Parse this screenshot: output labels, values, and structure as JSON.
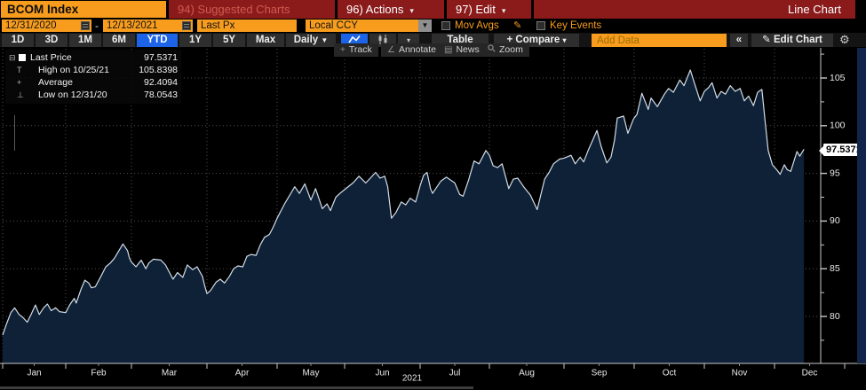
{
  "colors": {
    "amber": "#f79c1d",
    "red_bar": "#8b1b1b",
    "active_blue": "#1c63e7",
    "line": "#d2dde8",
    "fill": "#0e2137",
    "grid": "#4f4f4f",
    "axis": "#c9c9c9",
    "label": "#e8e8e8"
  },
  "icons": {
    "caret_down": "▾",
    "caret_down_solid": "▼",
    "pencil": "✎",
    "gear": "⚙",
    "news": "▤",
    "annotate": "∠",
    "track": "+",
    "collapse_box": "⊟",
    "high_marker": "T",
    "avg_marker": "+",
    "low_marker": "⊥"
  },
  "titlebar": {
    "ticker": "BCOM Index",
    "suggested": "94) Suggested Charts",
    "actions": "96) Actions",
    "edit": "97) Edit",
    "chart_type": "Line Chart"
  },
  "toolbar2": {
    "date_from": "12/31/2020",
    "date_sep": "-",
    "date_to": "12/13/2021",
    "field": "Last Px",
    "currency": "Local CCY",
    "mov_avgs": "Mov Avgs",
    "key_events": "Key Events"
  },
  "toolbar3": {
    "ranges": [
      "1D",
      "3D",
      "1M",
      "6M",
      "YTD",
      "1Y",
      "5Y",
      "Max"
    ],
    "active_range": "YTD",
    "period": "Daily",
    "table": "Table",
    "compare": "+ Compare",
    "add_data_placeholder": "Add Data",
    "collapse": "«",
    "edit_chart": "Edit Chart"
  },
  "chart_toolbar": {
    "items": [
      "Track",
      "Annotate",
      "News",
      "Zoom"
    ]
  },
  "legend": {
    "rows": [
      {
        "icon": "swatch",
        "label": "Last Price",
        "value": "97.5371"
      },
      {
        "icon": "T",
        "label": "High on 10/25/21",
        "value": "105.8398"
      },
      {
        "icon": "+",
        "label": "Average",
        "value": "92.4094"
      },
      {
        "icon": "⊥",
        "label": "Low on 12/31/20",
        "value": "78.0543"
      }
    ]
  },
  "last_price_callout": "97.5371",
  "chart_data": {
    "type": "area",
    "title": "BCOM Index",
    "xlabel": "",
    "ylabel": "",
    "x_axis": {
      "tick_labels": [
        "Jan",
        "Feb",
        "Mar",
        "Apr",
        "May",
        "Jun",
        "Jul",
        "Aug",
        "Sep",
        "Oct",
        "Nov",
        "Dec"
      ],
      "year_label": "2021",
      "unit": "decimal month, 0 = 12/31/2020, 11.42 = 12/13/2021"
    },
    "y_axis": {
      "ticks": [
        80,
        85,
        90,
        95,
        100,
        105
      ],
      "minor_ticks": [
        77.5,
        82.5,
        87.5,
        92.5,
        97.5,
        102.5,
        107.5
      ],
      "ylim": [
        75.1,
        108.2
      ]
    },
    "grid": "dotted",
    "legend_position": "top-left",
    "stats": {
      "last": 97.5371,
      "high_date": "10/25/21",
      "high": 105.8398,
      "average": 92.4094,
      "low_date": "12/31/20",
      "low": 78.0543
    },
    "series": [
      {
        "name": "Last Price",
        "points": [
          [
            0,
            78.05
          ],
          [
            0.06,
            79.2
          ],
          [
            0.13,
            80.4
          ],
          [
            0.19,
            80.9
          ],
          [
            0.26,
            80.2
          ],
          [
            0.32,
            79.9
          ],
          [
            0.39,
            79.4
          ],
          [
            0.45,
            80.2
          ],
          [
            0.52,
            81.2
          ],
          [
            0.58,
            80.2
          ],
          [
            0.65,
            80.9
          ],
          [
            0.71,
            81.3
          ],
          [
            0.77,
            80.6
          ],
          [
            0.84,
            80.9
          ],
          [
            0.9,
            80.5
          ],
          [
            1,
            80.4
          ],
          [
            1.06,
            81.2
          ],
          [
            1.13,
            81.9
          ],
          [
            1.16,
            81.4
          ],
          [
            1.23,
            82.8
          ],
          [
            1.29,
            83.8
          ],
          [
            1.35,
            83.5
          ],
          [
            1.39,
            83.0
          ],
          [
            1.45,
            83.1
          ],
          [
            1.55,
            84.4
          ],
          [
            1.61,
            85.2
          ],
          [
            1.68,
            85.6
          ],
          [
            1.74,
            86.1
          ],
          [
            1.81,
            86.9
          ],
          [
            1.87,
            87.6
          ],
          [
            1.94,
            86.9
          ],
          [
            1.97,
            86.1
          ],
          [
            2,
            85.7
          ],
          [
            2.06,
            85.2
          ],
          [
            2.13,
            85.9
          ],
          [
            2.19,
            85.0
          ],
          [
            2.23,
            85.6
          ],
          [
            2.29,
            86.0
          ],
          [
            2.39,
            85.9
          ],
          [
            2.45,
            85.4
          ],
          [
            2.55,
            83.9
          ],
          [
            2.61,
            84.6
          ],
          [
            2.68,
            84.1
          ],
          [
            2.74,
            85.4
          ],
          [
            2.81,
            84.9
          ],
          [
            2.87,
            85.2
          ],
          [
            2.94,
            84.2
          ],
          [
            2.97,
            83.2
          ],
          [
            3,
            82.4
          ],
          [
            3.05,
            82.7
          ],
          [
            3.13,
            83.6
          ],
          [
            3.19,
            83.9
          ],
          [
            3.25,
            83.5
          ],
          [
            3.32,
            84.2
          ],
          [
            3.38,
            85.0
          ],
          [
            3.44,
            85.3
          ],
          [
            3.51,
            85.2
          ],
          [
            3.57,
            86.3
          ],
          [
            3.63,
            86.5
          ],
          [
            3.7,
            86.4
          ],
          [
            3.76,
            87.5
          ],
          [
            3.82,
            88.3
          ],
          [
            3.89,
            88.6
          ],
          [
            3.94,
            89.3
          ],
          [
            4,
            90.3
          ],
          [
            4.11,
            91.8
          ],
          [
            4.26,
            93.6
          ],
          [
            4.33,
            92.9
          ],
          [
            4.41,
            93.9
          ],
          [
            4.5,
            92.2
          ],
          [
            4.57,
            93.4
          ],
          [
            4.67,
            91.3
          ],
          [
            4.74,
            91.8
          ],
          [
            4.79,
            91.1
          ],
          [
            4.87,
            92.5
          ],
          [
            4.93,
            92.9
          ],
          [
            5,
            93.3
          ],
          [
            5.11,
            94.0
          ],
          [
            5.19,
            94.7
          ],
          [
            5.28,
            94.0
          ],
          [
            5.34,
            94.5
          ],
          [
            5.41,
            95.1
          ],
          [
            5.47,
            94.5
          ],
          [
            5.53,
            94.7
          ],
          [
            5.57,
            93.6
          ],
          [
            5.62,
            90.3
          ],
          [
            5.68,
            90.9
          ],
          [
            5.75,
            92.0
          ],
          [
            5.81,
            91.7
          ],
          [
            5.87,
            92.4
          ],
          [
            5.94,
            92.0
          ],
          [
            6,
            93.7
          ],
          [
            6.05,
            94.8
          ],
          [
            6.1,
            95.1
          ],
          [
            6.15,
            93.4
          ],
          [
            6.18,
            92.9
          ],
          [
            6.3,
            94.2
          ],
          [
            6.38,
            94.6
          ],
          [
            6.5,
            94.0
          ],
          [
            6.57,
            92.8
          ],
          [
            6.62,
            92.6
          ],
          [
            6.7,
            94.3
          ],
          [
            6.78,
            96.3
          ],
          [
            6.85,
            96.0
          ],
          [
            6.95,
            97.4
          ],
          [
            7,
            96.9
          ],
          [
            7.05,
            95.8
          ],
          [
            7.11,
            95.6
          ],
          [
            7.17,
            96.0
          ],
          [
            7.26,
            93.4
          ],
          [
            7.32,
            94.4
          ],
          [
            7.38,
            94.5
          ],
          [
            7.46,
            93.6
          ],
          [
            7.55,
            92.7
          ],
          [
            7.64,
            91.2
          ],
          [
            7.74,
            94.4
          ],
          [
            7.8,
            95.1
          ],
          [
            7.86,
            96.0
          ],
          [
            7.94,
            96.5
          ],
          [
            8,
            96.6
          ],
          [
            8.1,
            96.9
          ],
          [
            8.16,
            96.0
          ],
          [
            8.23,
            96.7
          ],
          [
            8.28,
            96.2
          ],
          [
            8.35,
            97.5
          ],
          [
            8.47,
            99.5
          ],
          [
            8.53,
            97.8
          ],
          [
            8.61,
            96.1
          ],
          [
            8.67,
            96.7
          ],
          [
            8.72,
            98.5
          ],
          [
            8.76,
            100.8
          ],
          [
            8.85,
            101.0
          ],
          [
            8.91,
            99.2
          ],
          [
            8.99,
            100.7
          ],
          [
            9.04,
            101.2
          ],
          [
            9.11,
            103.4
          ],
          [
            9.2,
            101.7
          ],
          [
            9.24,
            102.9
          ],
          [
            9.33,
            102.0
          ],
          [
            9.43,
            103.3
          ],
          [
            9.49,
            103.9
          ],
          [
            9.56,
            103.5
          ],
          [
            9.65,
            104.8
          ],
          [
            9.71,
            104.2
          ],
          [
            9.8,
            105.84
          ],
          [
            9.87,
            104.2
          ],
          [
            9.94,
            102.6
          ],
          [
            10,
            103.6
          ],
          [
            10.06,
            104.0
          ],
          [
            10.11,
            104.5
          ],
          [
            10.18,
            102.9
          ],
          [
            10.24,
            103.6
          ],
          [
            10.3,
            103.3
          ],
          [
            10.37,
            104.2
          ],
          [
            10.44,
            103.6
          ],
          [
            10.51,
            103.9
          ],
          [
            10.57,
            102.6
          ],
          [
            10.63,
            103.1
          ],
          [
            10.7,
            102.1
          ],
          [
            10.76,
            103.5
          ],
          [
            10.82,
            103.8
          ],
          [
            10.87,
            100.2
          ],
          [
            10.91,
            97.4
          ],
          [
            10.97,
            95.9
          ],
          [
            11.04,
            95.3
          ],
          [
            11.08,
            94.9
          ],
          [
            11.14,
            95.9
          ],
          [
            11.18,
            95.4
          ],
          [
            11.23,
            95.2
          ],
          [
            11.32,
            97.3
          ],
          [
            11.36,
            96.8
          ],
          [
            11.42,
            97.5371
          ]
        ]
      }
    ]
  }
}
